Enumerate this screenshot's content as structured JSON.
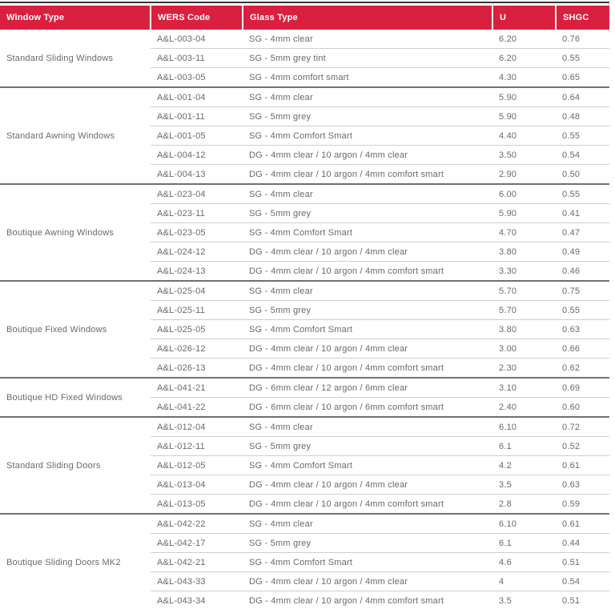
{
  "colors": {
    "header_bg": "#D9203E",
    "header_text": "#FFFFFF",
    "body_text": "#68696C",
    "row_divider": "#CDCED0",
    "group_divider": "#6F7074",
    "outer_border": "#38393B"
  },
  "table": {
    "columns": [
      "Window Type",
      "WERS Code",
      "Glass Type",
      "U",
      "SHGC"
    ],
    "groups": [
      {
        "window_type": "Standard Sliding Windows",
        "rows": [
          {
            "wers_code": "A&L-003-04",
            "glass_type": "SG - 4mm clear",
            "u": "6.20",
            "shgc": "0.76"
          },
          {
            "wers_code": "A&L-003-11",
            "glass_type": "SG - 5mm grey tint",
            "u": "6.20",
            "shgc": "0.55"
          },
          {
            "wers_code": "A&L-003-05",
            "glass_type": "SG - 4mm comfort smart",
            "u": "4.30",
            "shgc": "0.65"
          }
        ]
      },
      {
        "window_type": "Standard Awning Windows",
        "rows": [
          {
            "wers_code": "A&L-001-04",
            "glass_type": "SG - 4mm clear",
            "u": "5.90",
            "shgc": "0.64"
          },
          {
            "wers_code": "A&L-001-11",
            "glass_type": "SG - 5mm grey",
            "u": "5.90",
            "shgc": "0.48"
          },
          {
            "wers_code": "A&L-001-05",
            "glass_type": "SG - 4mm Comfort Smart",
            "u": "4.40",
            "shgc": "0.55"
          },
          {
            "wers_code": "A&L-004-12",
            "glass_type": "DG - 4mm clear / 10 argon / 4mm clear",
            "u": "3.50",
            "shgc": "0.54"
          },
          {
            "wers_code": "A&L-004-13",
            "glass_type": "DG - 4mm clear / 10 argon / 4mm comfort smart",
            "u": "2.90",
            "shgc": "0.50"
          }
        ]
      },
      {
        "window_type": "Boutique Awning Windows",
        "rows": [
          {
            "wers_code": "A&L-023-04",
            "glass_type": "SG - 4mm clear",
            "u": "6.00",
            "shgc": "0.55"
          },
          {
            "wers_code": "A&L-023-11",
            "glass_type": "SG - 5mm grey",
            "u": "5.90",
            "shgc": "0.41"
          },
          {
            "wers_code": "A&L-023-05",
            "glass_type": "SG - 4mm Comfort Smart",
            "u": "4.70",
            "shgc": "0.47"
          },
          {
            "wers_code": "A&L-024-12",
            "glass_type": "DG - 4mm clear / 10 argon / 4mm clear",
            "u": "3.80",
            "shgc": "0.49"
          },
          {
            "wers_code": "A&L-024-13",
            "glass_type": "DG - 4mm clear / 10 argon / 4mm comfort smart",
            "u": "3.30",
            "shgc": "0.46"
          }
        ]
      },
      {
        "window_type": "Boutique Fixed Windows",
        "rows": [
          {
            "wers_code": "A&L-025-04",
            "glass_type": "SG - 4mm clear",
            "u": "5.70",
            "shgc": "0.75"
          },
          {
            "wers_code": "A&L-025-11",
            "glass_type": "SG - 5mm grey",
            "u": "5.70",
            "shgc": "0.55"
          },
          {
            "wers_code": "A&L-025-05",
            "glass_type": "SG - 4mm Comfort Smart",
            "u": "3.80",
            "shgc": "0.63"
          },
          {
            "wers_code": "A&L-026-12",
            "glass_type": "DG - 4mm clear / 10 argon / 4mm clear",
            "u": "3.00",
            "shgc": "0.66"
          },
          {
            "wers_code": "A&L-026-13",
            "glass_type": "DG - 4mm clear / 10 argon / 4mm comfort smart",
            "u": "2.30",
            "shgc": "0.62"
          }
        ]
      },
      {
        "window_type": "Boutique HD Fixed Windows",
        "rows": [
          {
            "wers_code": "A&L-041-21",
            "glass_type": "DG - 6mm clear / 12 argon / 6mm clear",
            "u": "3.10",
            "shgc": "0.69"
          },
          {
            "wers_code": "A&L-041-22",
            "glass_type": "DG - 6mm clear / 10 argon / 6mm comfort smart",
            "u": "2.40",
            "shgc": "0.60"
          }
        ]
      },
      {
        "window_type": "Standard Sliding Doors",
        "rows": [
          {
            "wers_code": "A&L-012-04",
            "glass_type": "SG - 4mm clear",
            "u": "6.10",
            "shgc": "0.72"
          },
          {
            "wers_code": "A&L-012-11",
            "glass_type": "SG - 5mm grey",
            "u": "6.1",
            "shgc": "0.52"
          },
          {
            "wers_code": "A&L-012-05",
            "glass_type": "SG - 4mm Comfort Smart",
            "u": "4.2",
            "shgc": "0.61"
          },
          {
            "wers_code": "A&L-013-04",
            "glass_type": "DG - 4mm clear / 10 argon / 4mm clear",
            "u": "3.5",
            "shgc": "0.63"
          },
          {
            "wers_code": "A&L-013-05",
            "glass_type": "DG - 4mm clear / 10 argon / 4mm comfort smart",
            "u": "2.8",
            "shgc": "0.59"
          }
        ]
      },
      {
        "window_type": "Boutique Sliding Doors MK2",
        "rows": [
          {
            "wers_code": "A&L-042-22",
            "glass_type": "SG - 4mm clear",
            "u": "6.10",
            "shgc": "0.61"
          },
          {
            "wers_code": "A&L-042-17",
            "glass_type": "SG - 5mm grey",
            "u": "6.1",
            "shgc": "0.44"
          },
          {
            "wers_code": "A&L-042-21",
            "glass_type": "SG - 4mm Comfort Smart",
            "u": "4.6",
            "shgc": "0.51"
          },
          {
            "wers_code": "A&L-043-33",
            "glass_type": "DG - 4mm clear / 10 argon / 4mm clear",
            "u": "4",
            "shgc": "0.54"
          },
          {
            "wers_code": "A&L-043-34",
            "glass_type": "DG - 4mm clear / 10 argon / 4mm comfort smart",
            "u": "3.5",
            "shgc": "0.51"
          }
        ]
      }
    ]
  }
}
